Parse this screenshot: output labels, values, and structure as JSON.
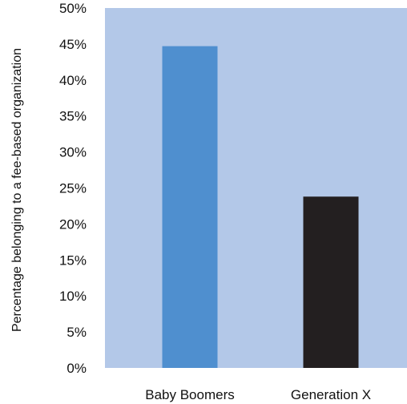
{
  "chart_data": {
    "type": "bar",
    "title": "",
    "xlabel": "",
    "ylabel": "Percentage belonging to a fee-based organization",
    "categories": [
      "Baby Boomers",
      "Generation X"
    ],
    "values": [
      44.7,
      23.8
    ],
    "value_unit": "%",
    "ylim": [
      0,
      50
    ],
    "yticks": [
      0,
      5,
      10,
      15,
      20,
      25,
      30,
      35,
      40,
      45,
      50
    ],
    "ytick_labels": [
      "0%",
      "5%",
      "10%",
      "15%",
      "20%",
      "25%",
      "30%",
      "35%",
      "40%",
      "45%",
      "50%"
    ],
    "grid": false,
    "legend": "none",
    "colors": {
      "plot_background": "#b3c8e8",
      "bars": [
        "#4f8fcf",
        "#231f20"
      ]
    }
  }
}
